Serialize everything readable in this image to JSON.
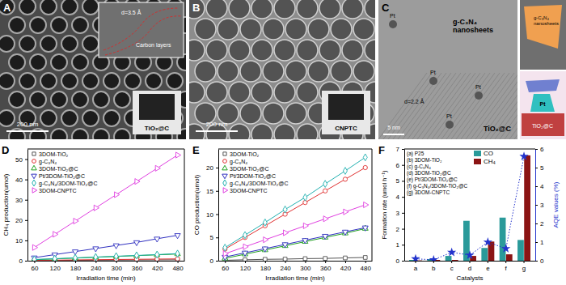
{
  "chart_data": [
    {
      "type": "line",
      "title": "D",
      "x_label": "Irradiation time (min)",
      "y_label": "CH₄ production(umol)",
      "x": [
        60,
        120,
        180,
        240,
        300,
        360,
        420,
        480
      ],
      "xlim": [
        40,
        500
      ],
      "xticks": [
        60,
        120,
        180,
        240,
        300,
        360,
        420,
        480
      ],
      "ylim": [
        0,
        55
      ],
      "yticks": [
        0,
        10,
        20,
        30,
        40,
        50
      ],
      "legend": "upper left",
      "series": [
        {
          "name": "3DOM-TiO₂",
          "color": "#555555",
          "marker": "square",
          "values": [
            0.1,
            0.15,
            0.2,
            0.25,
            0.3,
            0.35,
            0.4,
            0.45
          ]
        },
        {
          "name": "g-C₃N₄",
          "color": "#e03030",
          "marker": "circle",
          "values": [
            0.2,
            0.3,
            0.4,
            0.5,
            0.6,
            0.7,
            0.8,
            0.9
          ]
        },
        {
          "name": "3DOM-TiO₂@C",
          "color": "#20a020",
          "marker": "triangle-up",
          "values": [
            0.5,
            0.9,
            1.3,
            1.7,
            2.1,
            2.5,
            2.9,
            3.3
          ]
        },
        {
          "name": "Pt/3DOM-TiO₂@C",
          "color": "#3030c0",
          "marker": "triangle-down",
          "values": [
            1.5,
            3,
            4.5,
            6,
            7.5,
            9,
            10.8,
            12.5
          ]
        },
        {
          "name": "g-C₃N₄/3DOM-TiO₂@C",
          "color": "#20b0b0",
          "marker": "diamond",
          "values": [
            0.6,
            1.0,
            1.4,
            1.8,
            2.2,
            2.6,
            3.0,
            3.5
          ]
        },
        {
          "name": "3DOM-CNPTC",
          "color": "#e040e0",
          "marker": "triangle-right",
          "values": [
            6.5,
            13,
            19.5,
            26,
            32.5,
            39,
            45.5,
            52
          ]
        }
      ]
    },
    {
      "type": "line",
      "title": "E",
      "x_label": "Irradiation time (min)",
      "y_label": "CO production(umol)",
      "x": [
        60,
        120,
        180,
        240,
        300,
        360,
        420,
        480
      ],
      "xlim": [
        40,
        500
      ],
      "xticks": [
        60,
        120,
        180,
        240,
        300,
        360,
        420,
        480
      ],
      "ylim": [
        0,
        24
      ],
      "yticks": [
        0,
        5,
        10,
        15,
        20
      ],
      "legend": "upper left",
      "series": [
        {
          "name": "3DOM-TiO₂",
          "color": "#555555",
          "marker": "square",
          "values": [
            0.1,
            0.2,
            0.3,
            0.35,
            0.45,
            0.5,
            0.6,
            0.7
          ]
        },
        {
          "name": "g-C₃N₄",
          "color": "#e03030",
          "marker": "circle",
          "values": [
            2.5,
            5,
            7.5,
            10,
            12.5,
            15,
            17.5,
            20
          ]
        },
        {
          "name": "3DOM-TiO₂@C",
          "color": "#20a020",
          "marker": "triangle-up",
          "values": [
            0.5,
            1.4,
            2.3,
            3.2,
            4.1,
            5,
            5.9,
            6.9
          ]
        },
        {
          "name": "Pt/3DOM-TiO₂@C",
          "color": "#3030c0",
          "marker": "triangle-down",
          "values": [
            0.8,
            1.7,
            2.6,
            3.5,
            4.4,
            5.3,
            6.2,
            7.1
          ]
        },
        {
          "name": "g-C₃N₄/3DOM-TiO₂@C",
          "color": "#20b0b0",
          "marker": "diamond",
          "values": [
            2.8,
            5.5,
            8.2,
            11,
            13.6,
            16.5,
            19.3,
            22.2
          ]
        },
        {
          "name": "3DOM-CNPTC",
          "color": "#e040e0",
          "marker": "triangle-right",
          "values": [
            1.5,
            3,
            4.5,
            6,
            7.5,
            9,
            10.5,
            12
          ]
        }
      ]
    },
    {
      "type": "bar",
      "title": "F",
      "x_label": "Catalysts",
      "y_label": "Formation rate (umol h⁻¹)",
      "y2_label": "AQE values (%)",
      "categories": [
        "a",
        "b",
        "c",
        "d",
        "e",
        "f",
        "g"
      ],
      "ylim": [
        0,
        7
      ],
      "yticks": [
        0,
        1,
        2,
        3,
        4,
        5,
        6,
        7
      ],
      "y2lim": [
        0,
        6
      ],
      "y2ticks": [
        0,
        1,
        2,
        3,
        4,
        5,
        6
      ],
      "legend": "upper right",
      "annotations": [
        "(a) P25",
        "(b) 3DOM-TiO₂",
        "(c) g-C₃N₄",
        "(d) 3DOM-TiO₂@C",
        "(e) Pt/3DOM-TiO₂@C",
        "(f) g-C₃N₄/3DOM-TiO₂@C",
        "(g) 3DOM-CNPTC"
      ],
      "series": [
        {
          "name": "CO",
          "color": "#2a9a9a",
          "values": [
            0.05,
            0.1,
            0.3,
            2.5,
            0.8,
            2.7,
            1.3
          ]
        },
        {
          "name": "CH₄",
          "color": "#8b1414",
          "values": [
            0.02,
            0.05,
            0.05,
            0.3,
            1.2,
            0.4,
            6.6
          ]
        },
        {
          "type": "line",
          "axis": "y2",
          "color": "#2233cc",
          "marker": "star",
          "line_style": "dotted",
          "values": [
            0.1,
            0.05,
            0.45,
            0.3,
            1.0,
            0.65,
            5.6
          ]
        }
      ]
    }
  ],
  "image_panels": [
    {
      "label": "A",
      "texts": [
        "d=3.5 Å",
        "Carbon layers",
        "200 nm",
        "TiO₂@C"
      ]
    },
    {
      "label": "B",
      "texts": [
        "200 nm",
        "CNPTC"
      ]
    },
    {
      "label": "C",
      "texts": [
        "g-C₃N₄ nanosheets",
        "Pt",
        "Pt",
        "Pt",
        "Pt",
        "d=2.2 Å",
        "5 nm",
        "TiO₂@C",
        "g-C₃N₄ nanosheets",
        "Pt",
        "TiO₂@C"
      ]
    }
  ]
}
